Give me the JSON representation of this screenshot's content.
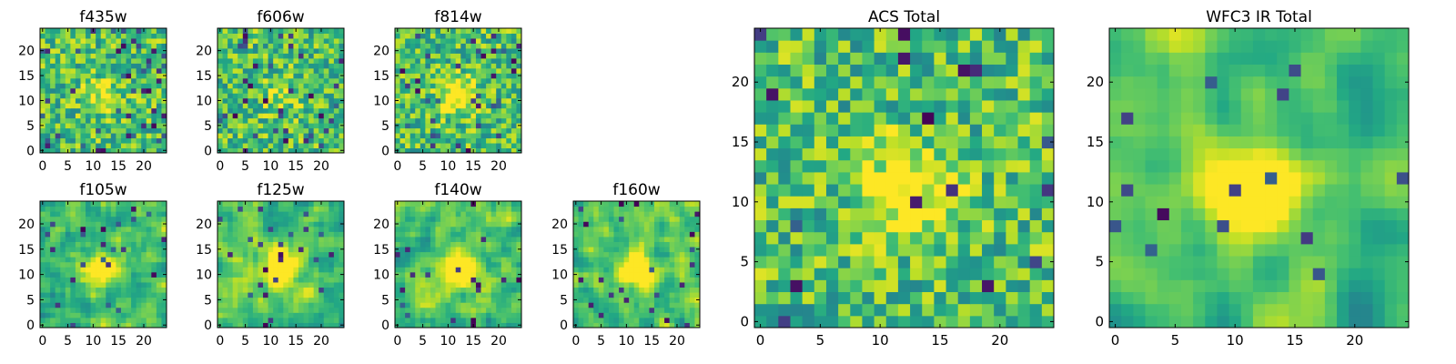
{
  "chart_data": {
    "type": "heatmap",
    "colormap": "viridis",
    "panels": [
      {
        "id": "f435w",
        "title": "f435w",
        "grid": 25,
        "xticks": [
          0,
          5,
          10,
          15,
          20
        ],
        "yticks": [
          0,
          5,
          10,
          15,
          20
        ],
        "seed": 11,
        "smooth": 0,
        "peak": 0.25,
        "dark": 0.08
      },
      {
        "id": "f606w",
        "title": "f606w",
        "grid": 25,
        "xticks": [
          0,
          5,
          10,
          15,
          20
        ],
        "yticks": [
          0,
          5,
          10,
          15,
          20
        ],
        "seed": 23,
        "smooth": 0,
        "peak": 0.2,
        "dark": 0.06
      },
      {
        "id": "f814w",
        "title": "f814w",
        "grid": 25,
        "xticks": [
          0,
          5,
          10,
          15,
          20
        ],
        "yticks": [
          0,
          5,
          10,
          15,
          20
        ],
        "seed": 37,
        "smooth": 0,
        "peak": 0.45,
        "dark": 0.07
      },
      {
        "id": "f105w",
        "title": "f105w",
        "grid": 25,
        "xticks": [
          0,
          5,
          10,
          15,
          20
        ],
        "yticks": [
          0,
          5,
          10,
          15,
          20
        ],
        "seed": 41,
        "smooth": 1,
        "peak": 0.55,
        "dark": 0.04
      },
      {
        "id": "f125w",
        "title": "f125w",
        "grid": 25,
        "xticks": [
          0,
          5,
          10,
          15,
          20
        ],
        "yticks": [
          0,
          5,
          10,
          15,
          20
        ],
        "seed": 53,
        "smooth": 1,
        "peak": 0.55,
        "dark": 0.03
      },
      {
        "id": "f140w",
        "title": "f140w",
        "grid": 25,
        "xticks": [
          0,
          5,
          10,
          15,
          20
        ],
        "yticks": [
          0,
          5,
          10,
          15,
          20
        ],
        "seed": 67,
        "smooth": 1,
        "peak": 0.6,
        "dark": 0.04
      },
      {
        "id": "f160w",
        "title": "f160w",
        "grid": 25,
        "xticks": [
          0,
          5,
          10,
          15,
          20
        ],
        "yticks": [
          0,
          5,
          10,
          15,
          20
        ],
        "seed": 79,
        "smooth": 1,
        "peak": 0.55,
        "dark": 0.05
      },
      {
        "id": "acs",
        "title": "ACS Total",
        "grid": 25,
        "xticks": [
          0,
          5,
          10,
          15,
          20
        ],
        "yticks": [
          0,
          5,
          10,
          15,
          20
        ],
        "seed": 97,
        "smooth": 0,
        "peak": 0.45,
        "dark": 0.03
      },
      {
        "id": "wfc3ir",
        "title": "WFC3 IR Total",
        "grid": 25,
        "xticks": [
          0,
          5,
          10,
          15,
          20
        ],
        "yticks": [
          0,
          5,
          10,
          15,
          20
        ],
        "seed": 131,
        "smooth": 2,
        "peak": 0.75,
        "dark": 0.02
      }
    ],
    "x_range": [
      -0.5,
      24.5
    ],
    "y_range": [
      -0.5,
      24.5
    ],
    "source_center": [
      12,
      11
    ]
  }
}
